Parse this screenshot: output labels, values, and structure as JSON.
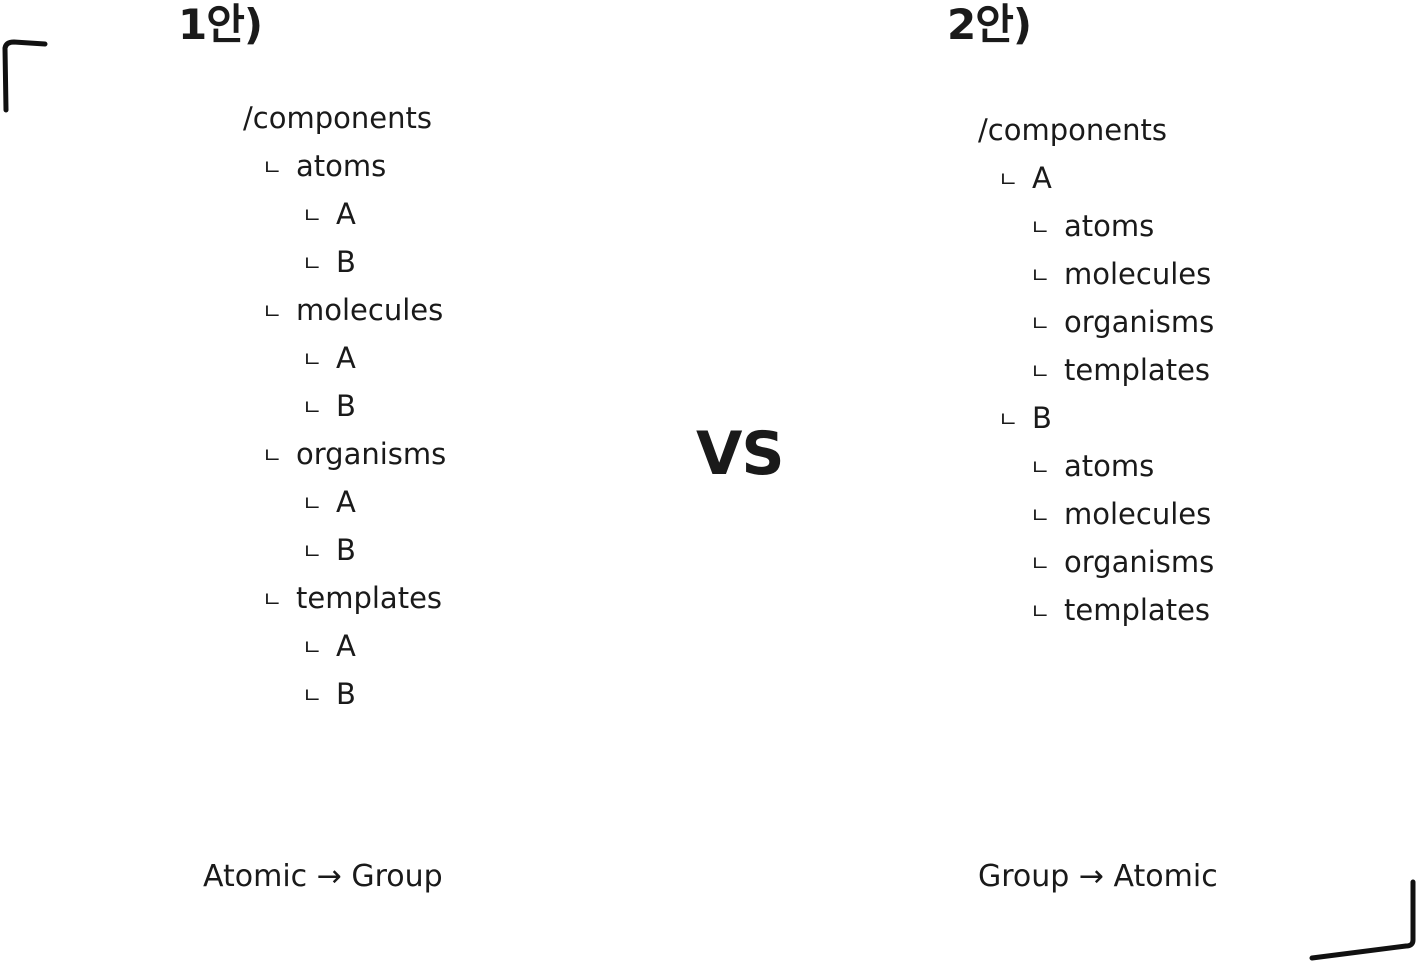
{
  "option1": {
    "heading": "1안)",
    "root": "/components",
    "branch_glyph": "ㄴ",
    "tree": [
      {
        "label": "atoms",
        "children": [
          "A",
          "B"
        ]
      },
      {
        "label": "molecules",
        "children": [
          "A",
          "B"
        ]
      },
      {
        "label": "organisms",
        "children": [
          "A",
          "B"
        ]
      },
      {
        "label": "templates",
        "children": [
          "A",
          "B"
        ]
      }
    ],
    "caption": "Atomic → Group"
  },
  "vs_label": "VS",
  "option2": {
    "heading": "2안)",
    "root": "/components",
    "branch_glyph": "ㄴ",
    "tree": [
      {
        "label": "A",
        "children": [
          "atoms",
          "molecules",
          "organisms",
          "templates"
        ]
      },
      {
        "label": "B",
        "children": [
          "atoms",
          "molecules",
          "organisms",
          "templates"
        ]
      }
    ],
    "caption": "Group → Atomic"
  },
  "colors": {
    "text": "#1a1a1a",
    "background": "#ffffff",
    "corner_mark": "#111111"
  }
}
